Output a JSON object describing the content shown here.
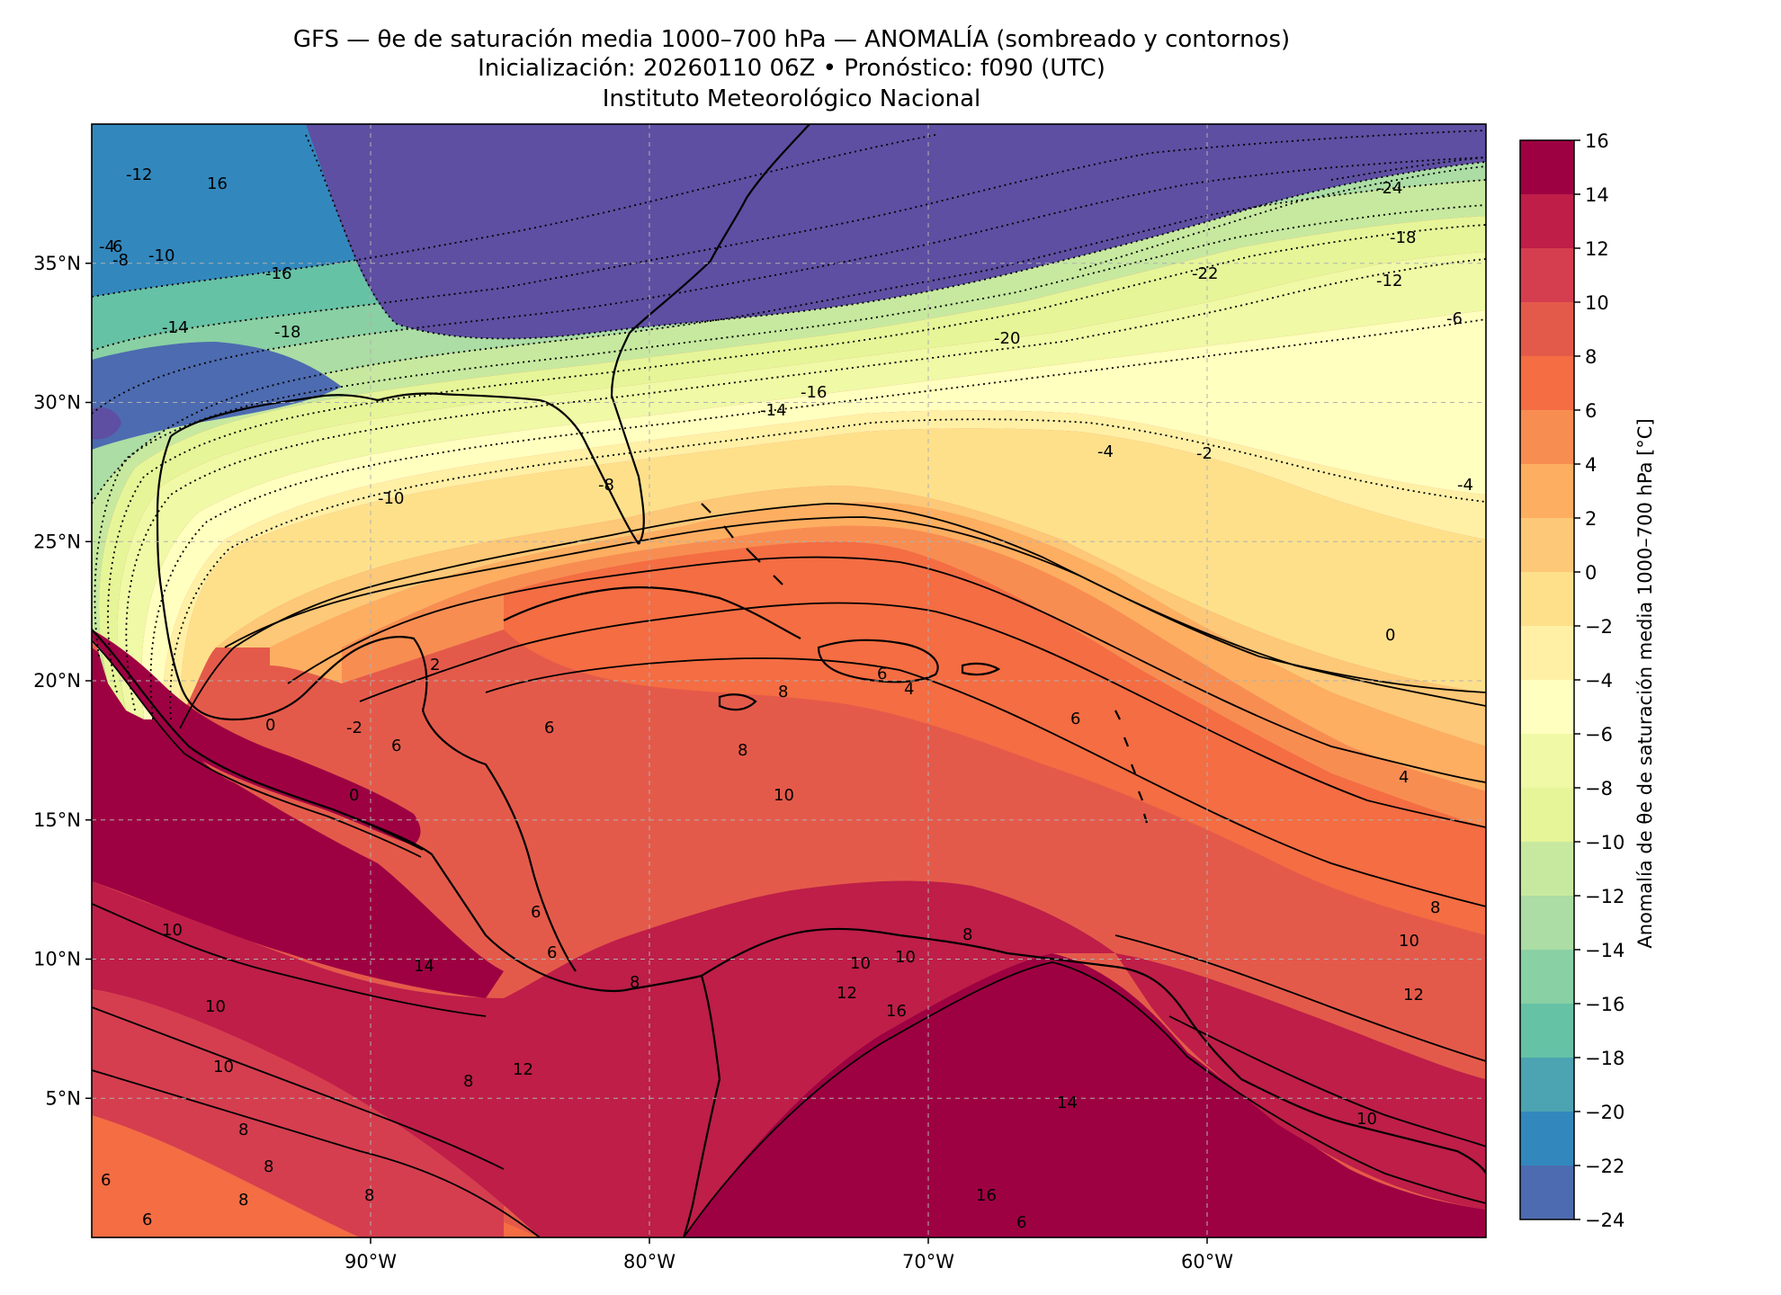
{
  "title": {
    "line1": "GFS — θe de saturación media 1000–700 hPa — ANOMALÍA (sombreado y contornos)",
    "line2": "Inicialización: 20260110 06Z   •   Pronóstico: f090 (UTC)",
    "line3": "Instituto Meteorológico Nacional"
  },
  "map": {
    "lon_range": [
      -100,
      -50
    ],
    "lat_range": [
      0,
      40
    ],
    "gridlines": true,
    "x_ticks": [
      {
        "value": -90,
        "label": "90°W"
      },
      {
        "value": -80,
        "label": "80°W"
      },
      {
        "value": -70,
        "label": "70°W"
      },
      {
        "value": -60,
        "label": "60°W"
      }
    ],
    "y_ticks": [
      {
        "value": 35,
        "label": "35°N"
      },
      {
        "value": 30,
        "label": "30°N"
      },
      {
        "value": 25,
        "label": "25°N"
      },
      {
        "value": 20,
        "label": "20°N"
      },
      {
        "value": 15,
        "label": "15°N"
      },
      {
        "value": 10,
        "label": "10°N"
      },
      {
        "value": 5,
        "label": "5°N"
      }
    ]
  },
  "colorbar": {
    "label": "Anomalía de θe de saturación media 1000–700 hPa [°C]",
    "ticks": [
      "16",
      "14",
      "12",
      "10",
      "8",
      "6",
      "4",
      "2",
      "0",
      "−2",
      "−4",
      "−6",
      "−8",
      "−10",
      "−12",
      "−14",
      "−16",
      "−18",
      "−20",
      "−22",
      "−24"
    ],
    "levels": [
      16,
      14,
      12,
      10,
      8,
      6,
      4,
      2,
      0,
      -2,
      -4,
      -6,
      -8,
      -10,
      -12,
      -14,
      -16,
      -18,
      -20,
      -22,
      -24
    ],
    "colors": [
      "#9e0142",
      "#be1e48",
      "#d53e4f",
      "#e45a4a",
      "#f46d43",
      "#f88d52",
      "#fdae61",
      "#fdc877",
      "#fee08b",
      "#fff0a6",
      "#ffffbf",
      "#eff9a6",
      "#e6f598",
      "#c7e99f",
      "#abdda4",
      "#89d0a4",
      "#66c2a5",
      "#4ca3b1",
      "#3288bd",
      "#4d6bb0",
      "#5e4fa2"
    ]
  },
  "contour_labels": [
    "-12",
    "16",
    "-10",
    "-16",
    "-14",
    "-18",
    "-4",
    "-8",
    "6",
    "-24",
    "-18",
    "-22",
    "-12",
    "-20",
    "-6",
    "-16",
    "-14",
    "-4",
    "-2",
    "-10",
    "-8",
    "-4",
    "0",
    "6",
    "8",
    "6",
    "4",
    "6",
    "0",
    "6",
    "4",
    "8",
    "10",
    "6",
    "8",
    "10",
    "8",
    "10",
    "12",
    "14",
    "10",
    "10",
    "12",
    "8",
    "6",
    "8",
    "6",
    "8",
    "8",
    "8",
    "6",
    "16",
    "14",
    "10",
    "12",
    "8",
    "10",
    "16",
    "10",
    "6",
    "2",
    "0",
    "-2"
  ]
}
